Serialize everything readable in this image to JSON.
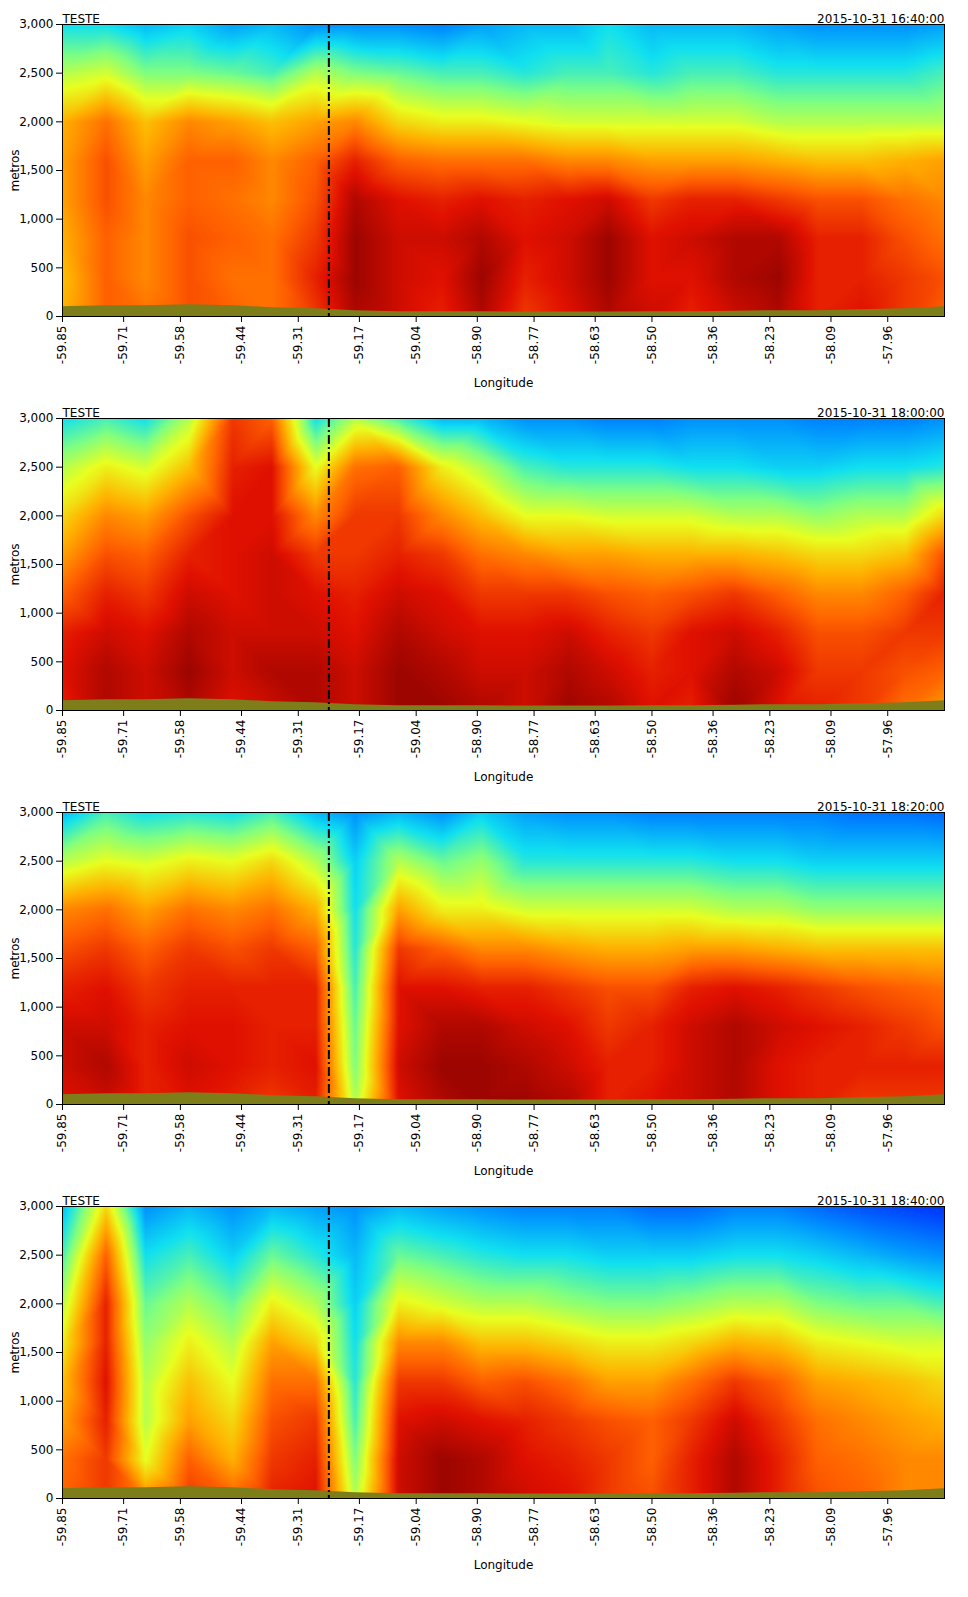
{
  "chart_data": {
    "type": "heatmap",
    "x_label": "Longitude",
    "y_label": "metros",
    "xlim": [
      -59.85,
      -57.83
    ],
    "ylim": [
      0,
      3000
    ],
    "xticks": [
      -59.85,
      -59.71,
      -59.58,
      -59.44,
      -59.31,
      -59.17,
      -59.04,
      {
        "value": -58.9,
        "label": "-58.90"
      },
      -58.77,
      -58.63,
      {
        "value": -58.5,
        "label": "-58.50"
      },
      -58.36,
      -58.23,
      -58.09,
      -57.96
    ],
    "yticks": [
      0,
      500,
      1000,
      1500,
      2000,
      2500,
      3000
    ],
    "color_range": [
      0,
      100
    ],
    "divider_x": -59.24,
    "x": [
      -59.85,
      -59.75,
      -59.66,
      -59.56,
      -59.46,
      -59.37,
      -59.27,
      -59.18,
      -59.08,
      -58.98,
      -58.89,
      -58.79,
      -58.69,
      -58.6,
      -58.5,
      -58.41,
      -58.31,
      -58.21,
      -58.12,
      -58.02,
      -57.92,
      -57.83
    ],
    "levels": [
      0,
      400,
      800,
      1200,
      1600,
      2000,
      2500,
      3000
    ],
    "terrain": [
      100,
      110,
      110,
      120,
      110,
      90,
      80,
      60,
      50,
      50,
      50,
      45,
      45,
      45,
      50,
      50,
      55,
      60,
      60,
      70,
      80,
      100
    ],
    "panels": [
      {
        "title": "TESTE",
        "subtitle": "2015-10-31 16:40:00",
        "cells": [
          [
            70,
            80,
            78,
            82,
            80,
            78,
            85,
            95,
            92,
            88,
            95,
            85,
            90,
            95,
            92,
            88,
            92,
            95,
            88,
            90,
            85,
            80
          ],
          [
            68,
            80,
            75,
            82,
            78,
            78,
            88,
            97,
            92,
            90,
            97,
            88,
            92,
            97,
            90,
            90,
            95,
            97,
            88,
            88,
            85,
            82
          ],
          [
            70,
            80,
            75,
            82,
            80,
            78,
            85,
            97,
            92,
            92,
            95,
            90,
            92,
            97,
            90,
            92,
            95,
            95,
            88,
            88,
            82,
            78
          ],
          [
            72,
            82,
            75,
            80,
            78,
            75,
            82,
            95,
            90,
            88,
            90,
            88,
            90,
            92,
            85,
            88,
            88,
            85,
            82,
            82,
            78,
            75
          ],
          [
            72,
            82,
            72,
            80,
            80,
            75,
            80,
            88,
            80,
            78,
            78,
            78,
            75,
            75,
            72,
            72,
            72,
            70,
            68,
            68,
            70,
            72
          ],
          [
            70,
            78,
            68,
            75,
            72,
            68,
            72,
            75,
            65,
            62,
            62,
            60,
            58,
            58,
            58,
            58,
            58,
            55,
            55,
            55,
            55,
            55
          ],
          [
            55,
            58,
            50,
            50,
            48,
            45,
            55,
            50,
            48,
            45,
            45,
            42,
            45,
            45,
            42,
            45,
            45,
            42,
            42,
            42,
            42,
            45
          ],
          [
            40,
            40,
            35,
            38,
            32,
            35,
            30,
            30,
            30,
            28,
            32,
            35,
            35,
            40,
            35,
            35,
            35,
            32,
            30,
            30,
            30,
            32
          ]
        ]
      },
      {
        "title": "TESTE",
        "subtitle": "2015-10-31 18:00:00",
        "cells": [
          [
            88,
            95,
            92,
            95,
            90,
            92,
            95,
            92,
            97,
            97,
            95,
            92,
            97,
            95,
            90,
            88,
            97,
            90,
            88,
            85,
            78,
            72
          ],
          [
            90,
            95,
            92,
            97,
            92,
            95,
            95,
            92,
            97,
            95,
            92,
            92,
            95,
            92,
            88,
            90,
            95,
            92,
            85,
            85,
            82,
            80
          ],
          [
            88,
            92,
            90,
            95,
            92,
            92,
            92,
            90,
            95,
            92,
            90,
            90,
            92,
            88,
            85,
            90,
            92,
            88,
            82,
            82,
            85,
            85
          ],
          [
            80,
            88,
            85,
            92,
            90,
            92,
            90,
            88,
            92,
            90,
            85,
            85,
            85,
            82,
            80,
            82,
            85,
            80,
            75,
            75,
            80,
            88
          ],
          [
            72,
            82,
            80,
            88,
            90,
            92,
            85,
            85,
            88,
            85,
            78,
            75,
            72,
            72,
            70,
            70,
            70,
            68,
            65,
            65,
            68,
            82
          ],
          [
            65,
            75,
            72,
            82,
            90,
            90,
            75,
            85,
            85,
            75,
            68,
            60,
            60,
            58,
            58,
            58,
            55,
            55,
            52,
            55,
            55,
            65
          ],
          [
            55,
            62,
            58,
            68,
            88,
            90,
            60,
            78,
            80,
            62,
            55,
            45,
            42,
            42,
            42,
            40,
            40,
            38,
            38,
            40,
            40,
            42
          ],
          [
            40,
            45,
            40,
            55,
            85,
            80,
            40,
            55,
            45,
            35,
            35,
            30,
            30,
            28,
            28,
            30,
            30,
            30,
            28,
            28,
            28,
            30
          ]
        ]
      },
      {
        "title": "TESTE",
        "subtitle": "2015-10-31 18:20:00",
        "cells": [
          [
            90,
            92,
            88,
            90,
            88,
            85,
            88,
            55,
            90,
            95,
            97,
            97,
            95,
            88,
            90,
            92,
            95,
            90,
            88,
            85,
            85,
            85
          ],
          [
            92,
            95,
            88,
            92,
            90,
            88,
            90,
            50,
            92,
            97,
            97,
            95,
            92,
            88,
            88,
            92,
            95,
            90,
            88,
            88,
            88,
            88
          ],
          [
            92,
            92,
            88,
            90,
            90,
            88,
            88,
            48,
            90,
            95,
            95,
            92,
            90,
            85,
            88,
            92,
            95,
            92,
            90,
            88,
            85,
            82
          ],
          [
            88,
            90,
            85,
            88,
            88,
            88,
            88,
            45,
            90,
            90,
            88,
            88,
            85,
            82,
            82,
            88,
            90,
            88,
            85,
            82,
            80,
            78
          ],
          [
            82,
            85,
            80,
            85,
            82,
            85,
            80,
            42,
            85,
            80,
            75,
            75,
            72,
            70,
            70,
            72,
            72,
            70,
            68,
            68,
            68,
            68
          ],
          [
            75,
            78,
            72,
            78,
            75,
            78,
            70,
            40,
            72,
            62,
            62,
            58,
            58,
            58,
            58,
            58,
            55,
            55,
            52,
            52,
            52,
            52
          ],
          [
            55,
            60,
            58,
            62,
            60,
            65,
            55,
            38,
            55,
            48,
            52,
            42,
            42,
            42,
            42,
            42,
            40,
            40,
            38,
            38,
            38,
            38
          ],
          [
            35,
            45,
            40,
            42,
            40,
            45,
            35,
            30,
            35,
            30,
            38,
            32,
            30,
            30,
            28,
            28,
            28,
            28,
            28,
            26,
            26,
            25
          ]
        ]
      },
      {
        "title": "TESTE",
        "subtitle": "2015-10-31 18:40:00",
        "cells": [
          [
            80,
            85,
            75,
            85,
            80,
            88,
            90,
            55,
            92,
            97,
            95,
            92,
            90,
            85,
            82,
            88,
            95,
            88,
            82,
            80,
            75,
            75
          ],
          [
            78,
            85,
            60,
            80,
            70,
            85,
            88,
            50,
            92,
            97,
            95,
            90,
            88,
            85,
            80,
            88,
            95,
            88,
            80,
            78,
            75,
            75
          ],
          [
            72,
            88,
            55,
            72,
            65,
            82,
            85,
            45,
            90,
            92,
            90,
            88,
            85,
            82,
            80,
            85,
            92,
            85,
            78,
            75,
            72,
            70
          ],
          [
            68,
            90,
            55,
            68,
            60,
            78,
            78,
            42,
            85,
            85,
            80,
            82,
            78,
            72,
            72,
            78,
            85,
            80,
            72,
            70,
            68,
            65
          ],
          [
            62,
            88,
            52,
            62,
            55,
            72,
            65,
            40,
            75,
            75,
            68,
            68,
            65,
            62,
            62,
            65,
            70,
            68,
            62,
            60,
            58,
            58
          ],
          [
            55,
            88,
            48,
            55,
            48,
            62,
            55,
            38,
            62,
            58,
            55,
            55,
            52,
            50,
            50,
            52,
            55,
            55,
            50,
            48,
            48,
            45
          ],
          [
            45,
            80,
            40,
            45,
            38,
            48,
            42,
            35,
            48,
            45,
            42,
            40,
            40,
            38,
            38,
            38,
            40,
            40,
            38,
            35,
            32,
            30
          ],
          [
            35,
            65,
            30,
            35,
            30,
            35,
            32,
            30,
            35,
            32,
            30,
            28,
            28,
            28,
            25,
            25,
            28,
            28,
            25,
            22,
            20,
            18
          ]
        ]
      }
    ]
  }
}
